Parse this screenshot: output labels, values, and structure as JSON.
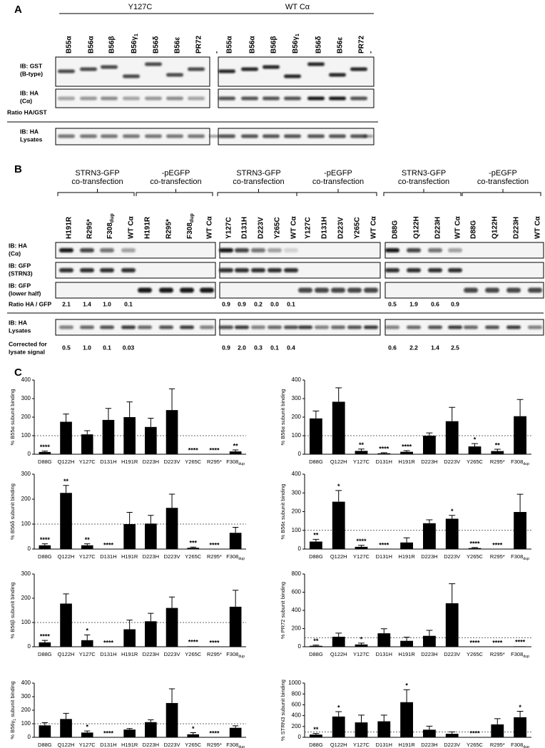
{
  "panel_a": {
    "label": "A",
    "groups": [
      {
        "title": "Y127C",
        "lanes": [
          "B55α",
          "B56α",
          "B56β",
          {
            "text": "B56γ",
            "sub": "1"
          },
          "B56δ",
          "B56ε",
          "PR72",
          "-"
        ]
      },
      {
        "title": "WT Cα",
        "lanes": [
          "B55α",
          "B56α",
          "B56β",
          {
            "text": "B56γ",
            "sub": "1"
          },
          "B56δ",
          "B56ε",
          "PR72",
          "-"
        ]
      }
    ],
    "rows": [
      [
        "IB: GST",
        "(B-type)"
      ],
      [
        "IB: HA",
        "(Cα)"
      ],
      [
        "Ratio HA/GST"
      ],
      [
        "IB: HA",
        "Lysates"
      ]
    ]
  },
  "panel_b": {
    "label": "B",
    "groups": [
      {
        "title": [
          "STRN3-GFP",
          "co-transfection"
        ],
        "lanes": [
          "H191R",
          "R295*",
          {
            "text": "F308",
            "sub": "dup"
          },
          "WT Cα"
        ],
        "ratio": [
          "2.1",
          "1.4",
          "1.0",
          "0.1"
        ],
        "corrected": [
          "0.5",
          "1.0",
          "0.1",
          "0.03"
        ]
      },
      {
        "title": [
          "-pEGFP",
          "co-transfection"
        ],
        "lanes": [
          "H191R",
          "R295*",
          {
            "text": "F308",
            "sub": "dup"
          },
          "WT Cα"
        ]
      },
      {
        "title": [
          "STRN3-GFP",
          "co-transfection"
        ],
        "lanes": [
          "Y127C",
          "D131H",
          "D223V",
          "Y265C",
          "WT Cα"
        ],
        "ratio": [
          "0.9",
          "0.9",
          "0.2",
          "0.0",
          "0.1"
        ],
        "corrected": [
          "0.9",
          "2.0",
          "0.3",
          "0.1",
          "0.4"
        ]
      },
      {
        "title": [
          "-pEGFP",
          "co-transfection"
        ],
        "lanes": [
          "Y127C",
          "D131H",
          "D223V",
          "Y265C",
          "WT Cα"
        ]
      },
      {
        "title": [
          "STRN3-GFP",
          "co-transfection"
        ],
        "lanes": [
          "D88G",
          "Q122H",
          "D223H",
          "WT Cα"
        ],
        "ratio": [
          "0.5",
          "1.9",
          "0.6",
          "0.9"
        ],
        "corrected": [
          "0.6",
          "2.2",
          "1.4",
          "2.5"
        ]
      },
      {
        "title": [
          "-pEGFP",
          "co-transfection"
        ],
        "lanes": [
          "D88G",
          "Q122H",
          "D223H",
          "WT Cα"
        ]
      }
    ],
    "rows": [
      [
        "IB: HA",
        "(Cα)"
      ],
      [
        "IB: GFP",
        "(STRN3)"
      ],
      [
        "IB: GFP",
        "(lower half)"
      ],
      [
        "Ratio HA / GFP"
      ],
      [
        "IB: HA",
        "Lysates"
      ],
      [
        "Corrected for",
        "lysate signal"
      ]
    ]
  },
  "panel_c": {
    "label": "C",
    "color": "#000000",
    "categories": [
      "D88G",
      "Q122H",
      "Y127C",
      "D131H",
      "H191R",
      "D223H",
      "D223V",
      "Y265C",
      "R295*",
      {
        "text": "F308",
        "sub": "dup"
      }
    ],
    "charts": [
      {
        "type": "bar",
        "ylabel": "% B55α subunit binding",
        "ylim": [
          0,
          400
        ],
        "yticks": [
          0,
          100,
          200,
          300,
          400
        ],
        "reference_line": 100,
        "values": [
          12,
          175,
          107,
          185,
          200,
          147,
          238,
          0,
          0,
          15
        ],
        "errors": [
          5,
          42,
          20,
          62,
          82,
          47,
          115,
          null,
          null,
          8
        ],
        "annotations": [
          "****",
          null,
          null,
          null,
          null,
          null,
          null,
          "****",
          "****",
          "**"
        ]
      },
      {
        "type": "bar",
        "ylabel": "% B56α subunit binding",
        "ylim": [
          0,
          400
        ],
        "yticks": [
          0,
          100,
          200,
          300,
          400
        ],
        "reference_line": 100,
        "values": [
          193,
          283,
          18,
          5,
          13,
          100,
          178,
          42,
          17,
          205
        ],
        "errors": [
          40,
          75,
          10,
          3,
          6,
          15,
          75,
          15,
          10,
          90
        ],
        "annotations": [
          null,
          null,
          "**",
          "****",
          "****",
          null,
          null,
          "*",
          "**",
          null
        ]
      },
      {
        "type": "bar",
        "ylabel": "% B56δ subunit binding",
        "ylim": [
          0,
          300
        ],
        "yticks": [
          0,
          100,
          200,
          300
        ],
        "reference_line": 100,
        "values": [
          15,
          225,
          15,
          0,
          100,
          102,
          165,
          5,
          0,
          65
        ],
        "errors": [
          6,
          30,
          6,
          null,
          47,
          33,
          55,
          3,
          null,
          22
        ],
        "annotations": [
          "****",
          "**",
          "**",
          "****",
          null,
          null,
          null,
          "***",
          "****",
          null
        ]
      },
      {
        "type": "bar",
        "ylabel": "% B56ε subunit binding",
        "ylim": [
          0,
          400
        ],
        "yticks": [
          0,
          100,
          200,
          300,
          400
        ],
        "reference_line": 100,
        "values": [
          40,
          253,
          12,
          0,
          35,
          138,
          162,
          5,
          0,
          198
        ],
        "errors": [
          12,
          60,
          8,
          null,
          25,
          18,
          18,
          3,
          null,
          95
        ],
        "annotations": [
          "**",
          "*",
          "****",
          "****",
          null,
          null,
          "*",
          "****",
          "****",
          null
        ]
      },
      {
        "type": "bar",
        "ylabel": "% B56β subunit binding",
        "ylim": [
          0,
          300
        ],
        "yticks": [
          0,
          100,
          200,
          300
        ],
        "reference_line": 100,
        "values": [
          18,
          178,
          27,
          0,
          72,
          105,
          160,
          2,
          0,
          165
        ],
        "errors": [
          8,
          40,
          22,
          null,
          38,
          33,
          45,
          null,
          null,
          68
        ],
        "annotations": [
          "****",
          null,
          "*",
          "****",
          null,
          null,
          null,
          "****",
          "****",
          null
        ]
      },
      {
        "type": "bar",
        "ylabel": "% PR72 subunit binding",
        "ylim": [
          0,
          800
        ],
        "yticks": [
          0,
          200,
          400,
          600,
          800
        ],
        "reference_line": 100,
        "values": [
          10,
          110,
          25,
          148,
          65,
          120,
          478,
          0,
          0,
          5
        ],
        "errors": [
          8,
          40,
          15,
          50,
          40,
          60,
          215,
          null,
          null,
          null
        ],
        "annotations": [
          "**",
          null,
          "*",
          null,
          null,
          null,
          null,
          "****",
          "****",
          "****"
        ]
      },
      {
        "type": "bar",
        "ylabel": {
          "text": "% B56γ",
          "sub": "1",
          "tail": " subunit binding"
        },
        "ylim": [
          0,
          400
        ],
        "yticks": [
          0,
          100,
          200,
          300,
          400
        ],
        "reference_line": 100,
        "values": [
          88,
          135,
          35,
          0,
          57,
          112,
          253,
          22,
          0,
          70
        ],
        "errors": [
          20,
          42,
          12,
          null,
          8,
          17,
          105,
          12,
          null,
          15
        ],
        "annotations": [
          null,
          null,
          "*",
          "****",
          null,
          null,
          null,
          "*",
          "****",
          null
        ]
      },
      {
        "type": "bar",
        "ylabel": "% STRN3 subunit binding",
        "ylim": [
          0,
          1000
        ],
        "yticks": [
          0,
          200,
          400,
          600,
          800,
          1000
        ],
        "reference_line": 100,
        "values": [
          50,
          383,
          275,
          295,
          648,
          140,
          65,
          0,
          238,
          370
        ],
        "errors": [
          20,
          90,
          135,
          115,
          230,
          65,
          35,
          null,
          105,
          110
        ],
        "annotations": [
          "**",
          "*",
          null,
          null,
          "*",
          null,
          null,
          "****",
          null,
          "*"
        ]
      }
    ]
  }
}
